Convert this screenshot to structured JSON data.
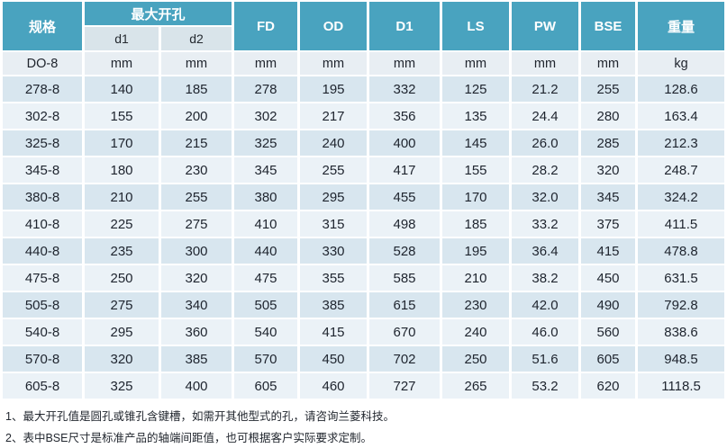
{
  "accent_color": "#49A3BF",
  "row_colors": {
    "odd": "#D8E6EF",
    "even": "#EBF2F7",
    "units": "#E8EEF3",
    "subheader": "#D9E4EA"
  },
  "table": {
    "header": {
      "spec": "规格",
      "max_opening_group": "最大开孔",
      "sub_d1": "d1",
      "sub_d2": "d2",
      "fd": "FD",
      "od": "OD",
      "d1_col": "D1",
      "ls": "LS",
      "pw": "PW",
      "bse": "BSE",
      "weight": "重量"
    },
    "units_row": [
      "DO-8",
      "mm",
      "mm",
      "mm",
      "mm",
      "mm",
      "mm",
      "mm",
      "mm",
      "kg"
    ],
    "rows": [
      [
        "278-8",
        "140",
        "185",
        "278",
        "195",
        "332",
        "125",
        "21.2",
        "255",
        "128.6"
      ],
      [
        "302-8",
        "155",
        "200",
        "302",
        "217",
        "356",
        "135",
        "24.4",
        "280",
        "163.4"
      ],
      [
        "325-8",
        "170",
        "215",
        "325",
        "240",
        "400",
        "145",
        "26.0",
        "285",
        "212.3"
      ],
      [
        "345-8",
        "180",
        "230",
        "345",
        "255",
        "417",
        "155",
        "28.2",
        "320",
        "248.7"
      ],
      [
        "380-8",
        "210",
        "255",
        "380",
        "295",
        "455",
        "170",
        "32.0",
        "345",
        "324.2"
      ],
      [
        "410-8",
        "225",
        "275",
        "410",
        "315",
        "498",
        "185",
        "33.2",
        "375",
        "411.5"
      ],
      [
        "440-8",
        "235",
        "300",
        "440",
        "330",
        "528",
        "195",
        "36.4",
        "415",
        "478.8"
      ],
      [
        "475-8",
        "250",
        "320",
        "475",
        "355",
        "585",
        "210",
        "38.2",
        "450",
        "631.5"
      ],
      [
        "505-8",
        "275",
        "340",
        "505",
        "385",
        "615",
        "230",
        "42.0",
        "490",
        "792.8"
      ],
      [
        "540-8",
        "295",
        "360",
        "540",
        "415",
        "670",
        "240",
        "46.0",
        "560",
        "838.6"
      ],
      [
        "570-8",
        "320",
        "385",
        "570",
        "450",
        "702",
        "250",
        "51.6",
        "605",
        "948.5"
      ],
      [
        "605-8",
        "325",
        "400",
        "605",
        "460",
        "727",
        "265",
        "53.2",
        "620",
        "1118.5"
      ]
    ]
  },
  "notes": [
    "1、最大开孔值是圆孔或锥孔含键槽，如需开其他型式的孔，请咨询兰菱科技。",
    "2、表中BSE尺寸是标准产品的轴端间距值，也可根据客户实际要求定制。"
  ]
}
